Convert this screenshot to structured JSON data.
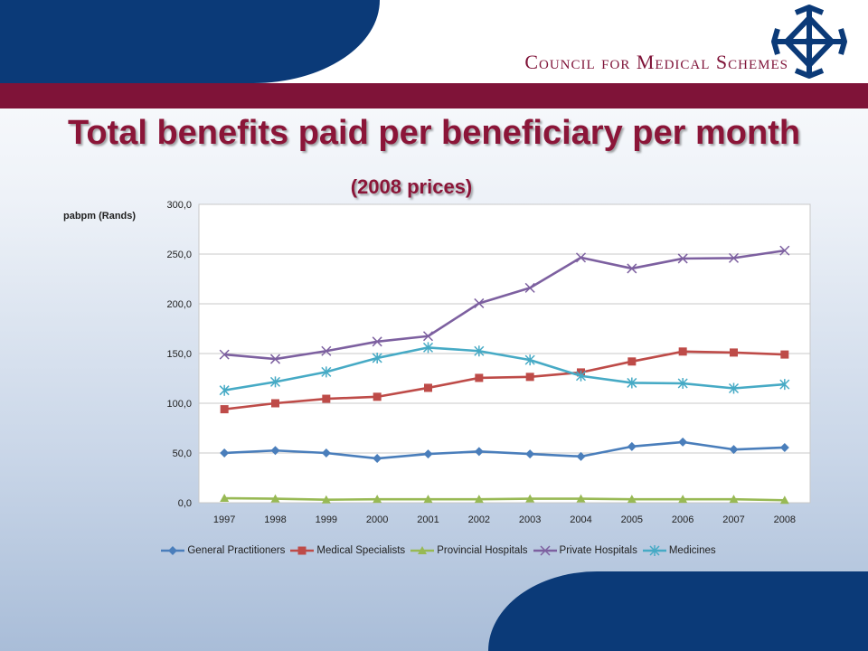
{
  "header": {
    "org_name": "Council for Medical Schemes",
    "title": "Total benefits paid per beneficiary per month",
    "subtitle": "(2008 prices)"
  },
  "colors": {
    "brand_blue": "#0b3a78",
    "brand_maroon": "#7f1338",
    "title_color": "#8b1538"
  },
  "chart_data": {
    "type": "line",
    "ylabel": "pabpm (Rands)",
    "xlabel": "",
    "ylim": [
      0,
      300
    ],
    "y_ticks": [
      "0,0",
      "50,0",
      "100,0",
      "150,0",
      "200,0",
      "250,0",
      "300,0"
    ],
    "grid": "horizontal",
    "legend_position": "bottom",
    "x": [
      "1997",
      "1998",
      "1999",
      "2000",
      "2001",
      "2002",
      "2003",
      "2004",
      "2005",
      "2006",
      "2007",
      "2008"
    ],
    "series": [
      {
        "name": "General Practitioners",
        "marker": "diamond",
        "color": "#4a7ebb",
        "values": [
          50,
          52.5,
          50,
          44.5,
          49,
          51.5,
          49,
          46.5,
          56.5,
          61,
          53.5,
          55.5
        ]
      },
      {
        "name": "Medical Specialists",
        "marker": "square",
        "color": "#be4b48",
        "values": [
          94,
          100,
          104.5,
          106.5,
          115.5,
          125.5,
          126.5,
          131,
          142,
          152,
          151,
          149
        ]
      },
      {
        "name": "Provincial Hospitals",
        "marker": "triangle",
        "color": "#98b954",
        "values": [
          4.5,
          4,
          3,
          3.5,
          3.5,
          3.5,
          4,
          4,
          3.5,
          3.5,
          3.5,
          2.5
        ]
      },
      {
        "name": "Private Hospitals",
        "marker": "x",
        "color": "#7d60a0",
        "values": [
          149,
          144.5,
          152.5,
          162,
          167.5,
          200.5,
          216,
          246.5,
          235.5,
          245.5,
          246,
          253.5
        ]
      },
      {
        "name": "Medicines",
        "marker": "star",
        "color": "#46aac5",
        "values": [
          113,
          121.5,
          131.5,
          145.5,
          156,
          152.5,
          143.5,
          127.5,
          120.5,
          120,
          115,
          119
        ]
      }
    ]
  }
}
